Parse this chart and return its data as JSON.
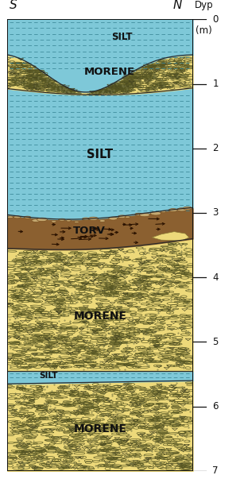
{
  "title_left": "S",
  "title_right": "N",
  "depth_label_line1": "Dyp",
  "depth_label_line2": "(m)",
  "depth_ticks": [
    0,
    1,
    2,
    3,
    4,
    5,
    6,
    7
  ],
  "morene_color": "#EDD97A",
  "silt_color": "#7EC8D8",
  "torv_color": "#8B6030",
  "gravel_color": "#C4A870",
  "bg_color": "#FFFFFF",
  "border_color": "#222222",
  "label_fontsize": 9.5,
  "fig_width": 3.07,
  "fig_height": 6.08,
  "dpi": 100
}
